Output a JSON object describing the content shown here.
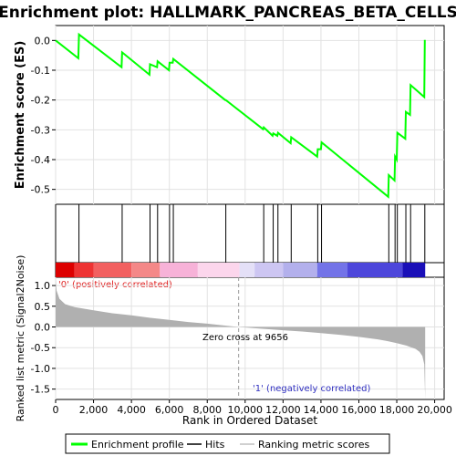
{
  "chart_data": [
    {
      "type": "line",
      "title": "Enrichment plot: HALLMARK_PANCREAS_BETA_CELLS",
      "ylabel": "Enrichment score (ES)",
      "xlim": [
        0,
        20500
      ],
      "ylim": [
        -0.55,
        0.05
      ],
      "yticks": [
        "0.0",
        "-0.1",
        "-0.2",
        "-0.3",
        "-0.4",
        "-0.5"
      ],
      "ytick_values": [
        0.0,
        -0.1,
        -0.2,
        -0.3,
        -0.4,
        -0.5
      ],
      "grid": true,
      "line_color": "#00ff00",
      "series": [
        {
          "name": "Enrichment profile",
          "x": [
            0,
            1200,
            1230,
            3480,
            3510,
            4950,
            4980,
            5350,
            5380,
            5980,
            6010,
            6180,
            6210,
            8950,
            8980,
            10950,
            10980,
            11450,
            11480,
            11700,
            11730,
            12400,
            12430,
            13800,
            13830,
            14000,
            14030,
            17550,
            17580,
            17880,
            17910,
            18000,
            18030,
            18450,
            18480,
            18700,
            18730,
            19450,
            19480
          ],
          "y": [
            0.0,
            -0.06,
            0.02,
            -0.09,
            -0.04,
            -0.115,
            -0.08,
            -0.09,
            -0.07,
            -0.1,
            -0.075,
            -0.075,
            -0.062,
            -0.2,
            -0.2,
            -0.298,
            -0.292,
            -0.32,
            -0.312,
            -0.32,
            -0.31,
            -0.345,
            -0.325,
            -0.39,
            -0.365,
            -0.365,
            -0.342,
            -0.525,
            -0.452,
            -0.47,
            -0.39,
            -0.4,
            -0.31,
            -0.33,
            -0.24,
            -0.25,
            -0.15,
            -0.19,
            0.002
          ]
        }
      ]
    },
    {
      "type": "hits",
      "name": "Hits",
      "positions": [
        1230,
        3510,
        4980,
        5380,
        6010,
        6210,
        8980,
        10980,
        11480,
        11730,
        12430,
        13830,
        14030,
        17580,
        17910,
        18030,
        18480,
        18730,
        19480
      ]
    },
    {
      "type": "heatmap",
      "label_pos": "'0' (positively correlated)",
      "label_neg": "'1' (negatively correlated)",
      "colors": [
        "#dd0000",
        "#ee3333",
        "#f26060",
        "#f48888",
        "#f7b2d8",
        "#fcd6ec",
        "#e4e0f7",
        "#cdc6f2",
        "#b3b0ec",
        "#7373e8",
        "#4d46db",
        "#1a0fb8"
      ],
      "breaks": [
        0,
        1000,
        2000,
        4000,
        5500,
        7500,
        9700,
        10500,
        12000,
        13800,
        15400,
        18300,
        19500
      ]
    },
    {
      "type": "area",
      "ylabel": "Ranked list metric (Signal2Noise)",
      "xlabel": "Rank in Ordered Dataset",
      "xlim": [
        0,
        20500
      ],
      "ylim": [
        -1.75,
        1.2
      ],
      "xticks": [
        "0",
        "2,000",
        "4,000",
        "6,000",
        "8,000",
        "10,000",
        "12,000",
        "14,000",
        "16,000",
        "18,000",
        "20,000"
      ],
      "xtick_values": [
        0,
        2000,
        4000,
        6000,
        8000,
        10000,
        12000,
        14000,
        16000,
        18000,
        20000
      ],
      "yticks": [
        "1.0",
        "0.5",
        "0.0",
        "-0.5",
        "-1.0",
        "-1.5"
      ],
      "ytick_values": [
        1.0,
        0.5,
        0.0,
        -0.5,
        -1.0,
        -1.5
      ],
      "annotation": "Zero cross at 9656",
      "zero_cross": 9656,
      "x": [
        0,
        50,
        200,
        500,
        1000,
        2000,
        3000,
        4000,
        5000,
        6000,
        7000,
        8000,
        9000,
        9656,
        10500,
        12000,
        13000,
        14000,
        15000,
        16000,
        17000,
        17500,
        18000,
        18500,
        19000,
        19200,
        19350,
        19450,
        19500
      ],
      "values": [
        1.15,
        0.88,
        0.68,
        0.55,
        0.48,
        0.4,
        0.33,
        0.28,
        0.22,
        0.17,
        0.12,
        0.08,
        0.03,
        0.0,
        -0.03,
        -0.08,
        -0.11,
        -0.15,
        -0.19,
        -0.24,
        -0.3,
        -0.34,
        -0.39,
        -0.45,
        -0.53,
        -0.6,
        -0.7,
        -0.9,
        -1.75
      ]
    }
  ],
  "legend": {
    "items": [
      {
        "label": "Enrichment profile",
        "color": "#00ff00"
      },
      {
        "label": "Hits",
        "color": "#000000"
      },
      {
        "label": "Ranking metric scores",
        "color": "#c0c0c0"
      }
    ]
  }
}
